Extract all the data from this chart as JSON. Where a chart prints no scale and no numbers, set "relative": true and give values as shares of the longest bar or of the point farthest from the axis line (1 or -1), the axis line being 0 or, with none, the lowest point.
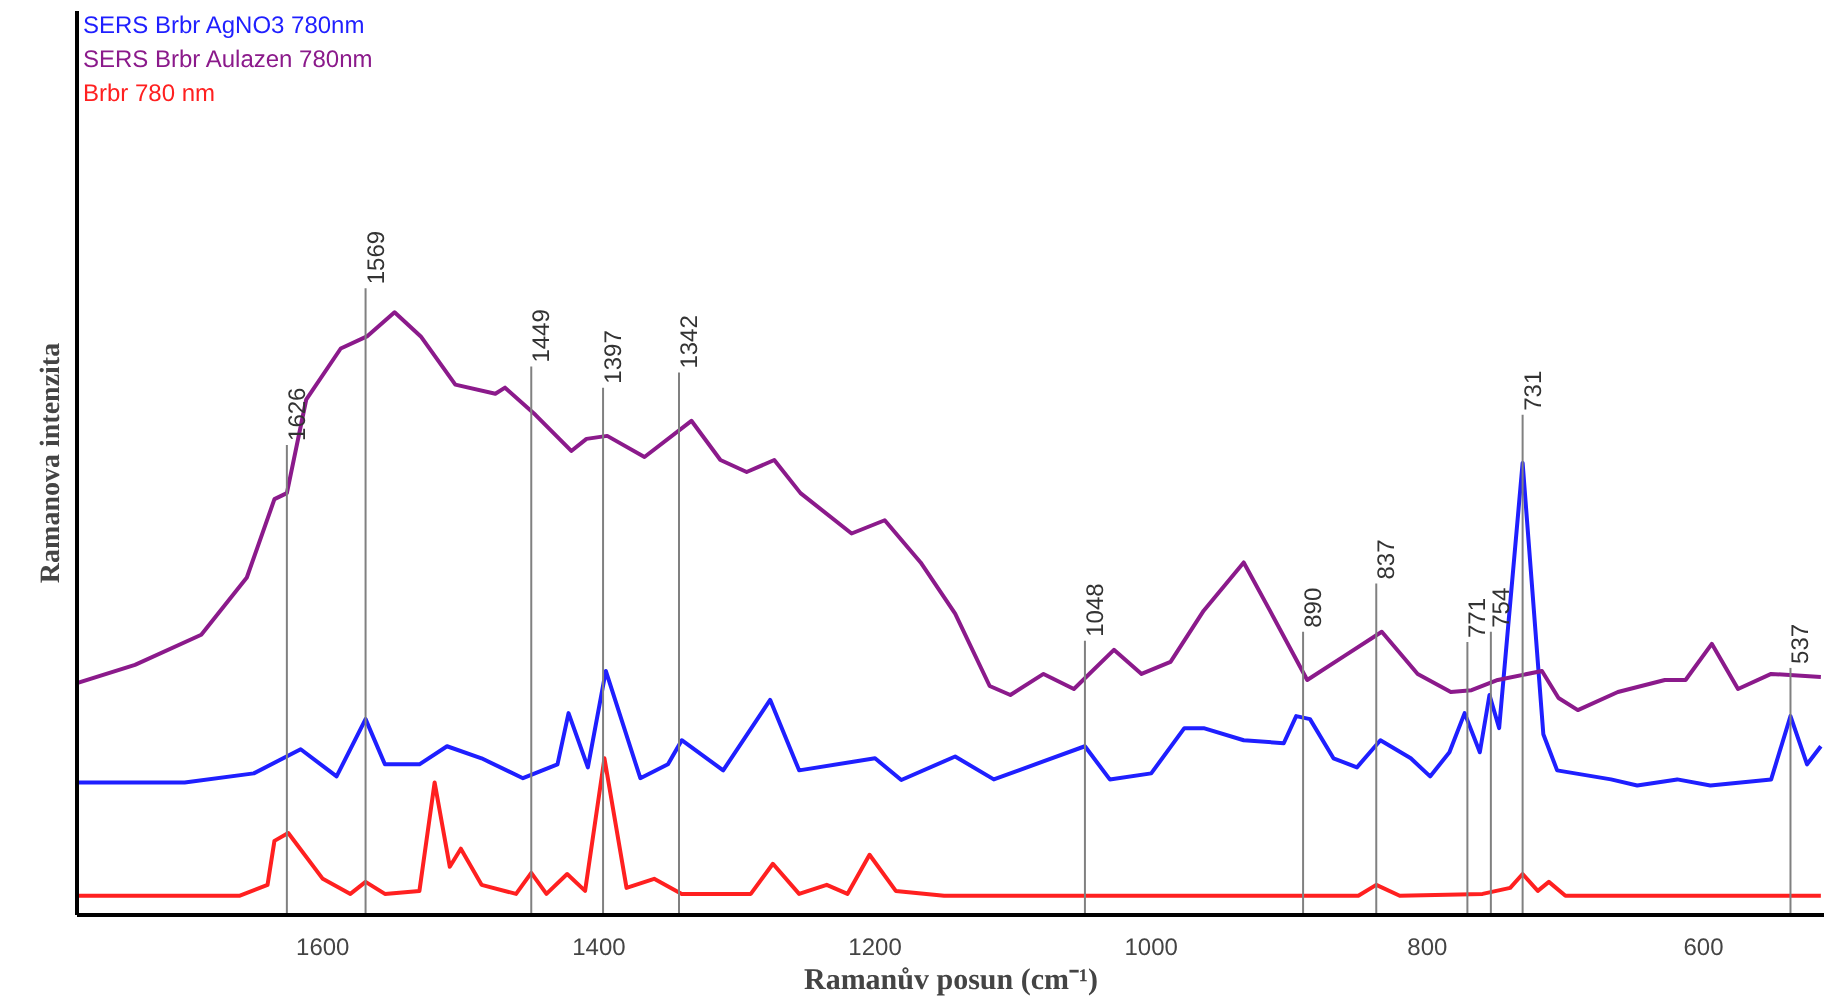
{
  "chart_data": {
    "type": "line",
    "relative": true,
    "xlabel": "Ramanův posun (cm⁻¹)",
    "ylabel": "Ramanova intenzita",
    "xlim": [
      1778,
      512
    ],
    "xticks": [
      1600,
      1400,
      1200,
      1000,
      800,
      600
    ],
    "grid": false,
    "legend": "top left",
    "marker": "none",
    "line_style": "solid",
    "series": [
      {
        "name": "SERS Brbr AgNO3 780nm",
        "color": "#1f1fff",
        "x": [
          1778,
          1750,
          1700,
          1650,
          1616,
          1590,
          1569,
          1555,
          1530,
          1510,
          1485,
          1455,
          1430,
          1422,
          1408,
          1395,
          1370,
          1350,
          1340,
          1310,
          1276,
          1255,
          1200,
          1181,
          1142,
          1114,
          1048,
          1030,
          1000,
          976,
          962,
          933,
          904,
          895,
          885,
          868,
          851,
          834,
          812,
          798,
          784,
          773,
          762,
          755,
          748,
          731,
          716,
          706,
          667,
          648,
          619,
          595,
          551,
          537,
          525,
          515
        ],
        "values": [
          0.22,
          0.22,
          0.22,
          0.235,
          0.275,
          0.23,
          0.325,
          0.25,
          0.25,
          0.28,
          0.26,
          0.227,
          0.25,
          0.335,
          0.245,
          0.405,
          0.227,
          0.25,
          0.29,
          0.24,
          0.357,
          0.24,
          0.26,
          0.224,
          0.263,
          0.225,
          0.28,
          0.225,
          0.235,
          0.31,
          0.31,
          0.29,
          0.285,
          0.33,
          0.325,
          0.26,
          0.245,
          0.29,
          0.26,
          0.23,
          0.27,
          0.335,
          0.27,
          0.365,
          0.31,
          0.75,
          0.3,
          0.24,
          0.225,
          0.215,
          0.225,
          0.215,
          0.225,
          0.33,
          0.25,
          0.28
        ]
      },
      {
        "name": "SERS Brbr Aulazen 780nm",
        "color": "#8b1a8b",
        "x": [
          1778,
          1736,
          1688,
          1655,
          1635,
          1626,
          1612,
          1587,
          1568,
          1548,
          1529,
          1504,
          1475,
          1468,
          1446,
          1420,
          1409,
          1394,
          1367,
          1333,
          1312,
          1293,
          1273,
          1254,
          1217,
          1193,
          1167,
          1142,
          1117,
          1102,
          1078,
          1056,
          1027,
          1007,
          986,
          962,
          933,
          914,
          887,
          860,
          833,
          807,
          783,
          768,
          749,
          717,
          705,
          691,
          662,
          628,
          613,
          594,
          575,
          551,
          515
        ],
        "values": [
          0.385,
          0.415,
          0.465,
          0.56,
          0.69,
          0.7,
          0.855,
          0.94,
          0.96,
          1.0,
          0.96,
          0.88,
          0.865,
          0.875,
          0.83,
          0.77,
          0.79,
          0.795,
          0.76,
          0.82,
          0.755,
          0.735,
          0.755,
          0.7,
          0.633,
          0.655,
          0.585,
          0.5,
          0.38,
          0.365,
          0.4,
          0.375,
          0.44,
          0.4,
          0.42,
          0.505,
          0.585,
          0.505,
          0.39,
          0.43,
          0.47,
          0.4,
          0.37,
          0.373,
          0.39,
          0.405,
          0.36,
          0.34,
          0.37,
          0.39,
          0.39,
          0.45,
          0.375,
          0.4,
          0.395
        ]
      },
      {
        "name": "Brbr 780 nm",
        "color": "#ff2020",
        "x": [
          1778,
          1660,
          1640,
          1635,
          1625,
          1600,
          1580,
          1569,
          1555,
          1530,
          1519,
          1508,
          1500,
          1485,
          1460,
          1449,
          1438,
          1423,
          1410,
          1396,
          1380,
          1360,
          1340,
          1290,
          1274,
          1255,
          1235,
          1220,
          1204,
          1185,
          1150,
          1000,
          850,
          837,
          820,
          760,
          740,
          731,
          720,
          712,
          700,
          515
        ],
        "values": [
          0.032,
          0.032,
          0.05,
          0.123,
          0.136,
          0.06,
          0.035,
          0.055,
          0.035,
          0.04,
          0.22,
          0.08,
          0.11,
          0.05,
          0.035,
          0.07,
          0.035,
          0.068,
          0.04,
          0.26,
          0.045,
          0.06,
          0.035,
          0.035,
          0.085,
          0.035,
          0.05,
          0.035,
          0.1,
          0.04,
          0.032,
          0.032,
          0.032,
          0.05,
          0.032,
          0.035,
          0.045,
          0.068,
          0.04,
          0.055,
          0.032,
          0.032
        ]
      }
    ],
    "ref_lines": [
      {
        "axis": "x",
        "value": 1626,
        "label": "1626",
        "color": "#808080"
      },
      {
        "axis": "x",
        "value": 1569,
        "label": "1569",
        "color": "#808080"
      },
      {
        "axis": "x",
        "value": 1449,
        "label": "1449",
        "color": "#808080"
      },
      {
        "axis": "x",
        "value": 1397,
        "label": "1397",
        "color": "#808080"
      },
      {
        "axis": "x",
        "value": 1342,
        "label": "1342",
        "color": "#808080"
      },
      {
        "axis": "x",
        "value": 1048,
        "label": "1048",
        "color": "#808080"
      },
      {
        "axis": "x",
        "value": 890,
        "label": "890",
        "color": "#808080"
      },
      {
        "axis": "x",
        "value": 837,
        "label": "837",
        "color": "#808080"
      },
      {
        "axis": "x",
        "value": 771,
        "label": "771",
        "color": "#808080"
      },
      {
        "axis": "x",
        "value": 754,
        "label": "754",
        "color": "#808080"
      },
      {
        "axis": "x",
        "value": 731,
        "label": "731",
        "color": "#808080"
      },
      {
        "axis": "x",
        "value": 537,
        "label": "537",
        "color": "#808080"
      }
    ]
  }
}
